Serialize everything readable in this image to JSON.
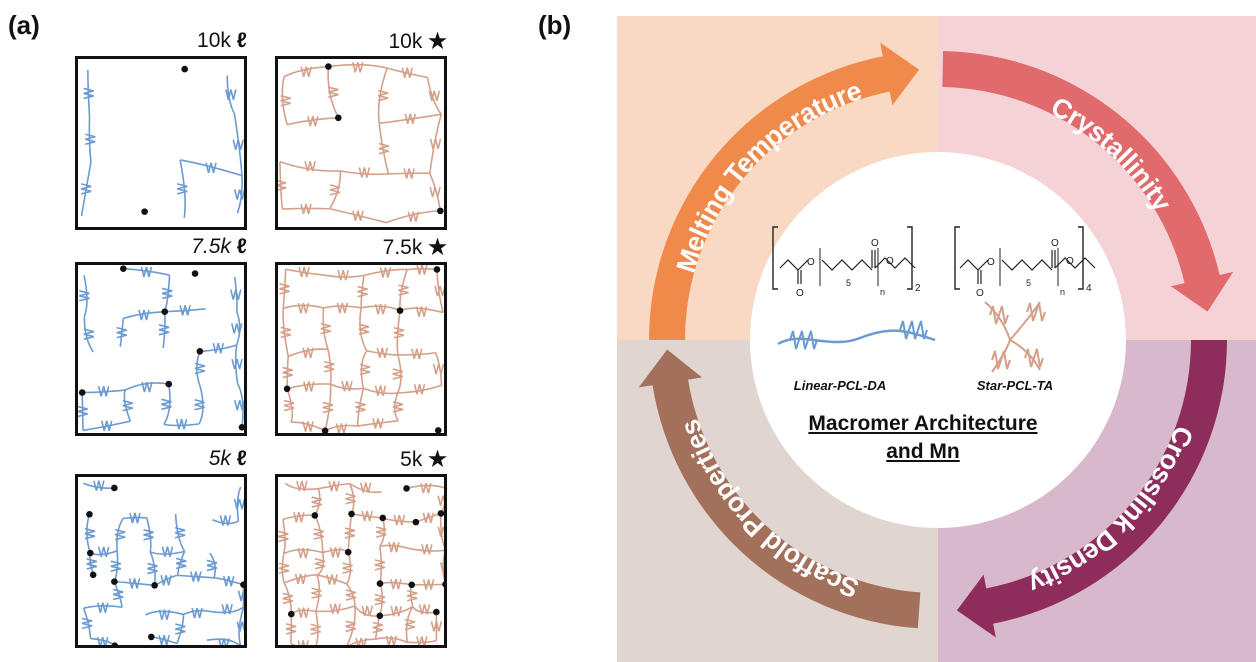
{
  "panel_a": {
    "letter": "(a)",
    "networks": [
      {
        "label": "10k",
        "suffix": "ℓ",
        "italic": false,
        "kind": "linear",
        "density": 4
      },
      {
        "label": "10k",
        "suffix": "★",
        "italic": false,
        "kind": "star",
        "density": 4
      },
      {
        "label": "7.5k",
        "suffix": "ℓ",
        "italic": true,
        "kind": "linear",
        "density": 5
      },
      {
        "label": "7.5k",
        "suffix": "★",
        "italic": false,
        "kind": "star",
        "density": 5
      },
      {
        "label": "5k",
        "suffix": "ℓ",
        "italic": true,
        "kind": "linear",
        "density": 6
      },
      {
        "label": "5k",
        "suffix": "★",
        "italic": false,
        "kind": "star",
        "density": 6
      }
    ]
  },
  "panel_b": {
    "letter": "(b)",
    "cycle": [
      {
        "label": "Melting Temperature",
        "color": "#f08a4b"
      },
      {
        "label": "Crystallinity",
        "color": "#e06a6c"
      },
      {
        "label": "Crosslink Density",
        "color": "#8e2d5c"
      },
      {
        "label": "Scaffold Properties",
        "color": "#a3705c"
      }
    ],
    "quadrant_colors": [
      "#f9d9c3",
      "#f5d2d6",
      "#d8b9cc",
      "#e1d5cf"
    ],
    "center": {
      "linear_label": "Linear-PCL-DA",
      "star_label": "Star-PCL-TA",
      "title_line1": "Macromer Architecture",
      "title_line2": "and Mn",
      "linear_subscript": "2",
      "star_subscript": "4",
      "repeat_n": "n",
      "repeat_5": "5"
    },
    "colors": {
      "linear": "#6b9bd1",
      "star": "#d4a08a"
    }
  }
}
